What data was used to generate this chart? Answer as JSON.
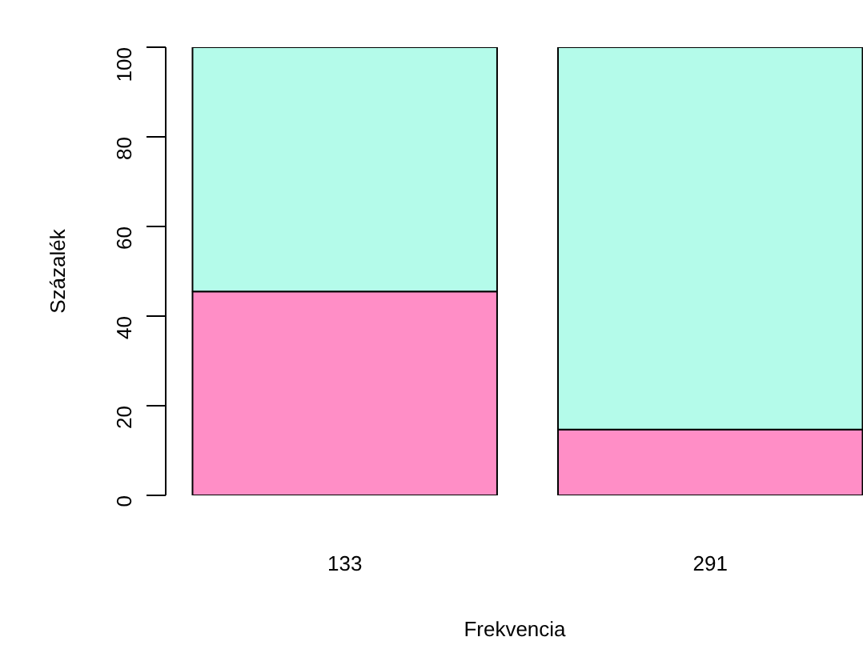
{
  "chart_data": {
    "type": "bar",
    "stacked": true,
    "xlabel": "Frekvencia",
    "ylabel": "Százalék",
    "categories": [
      "133",
      "291"
    ],
    "series": [
      {
        "color": "#ff8ec6",
        "values": [
          45.5,
          14.7
        ]
      },
      {
        "color": "#b4fbea",
        "values": [
          54.5,
          85.3
        ]
      }
    ],
    "ylim": [
      0,
      100
    ],
    "yticks": [
      0,
      20,
      40,
      60,
      80,
      100
    ],
    "grid": false
  }
}
